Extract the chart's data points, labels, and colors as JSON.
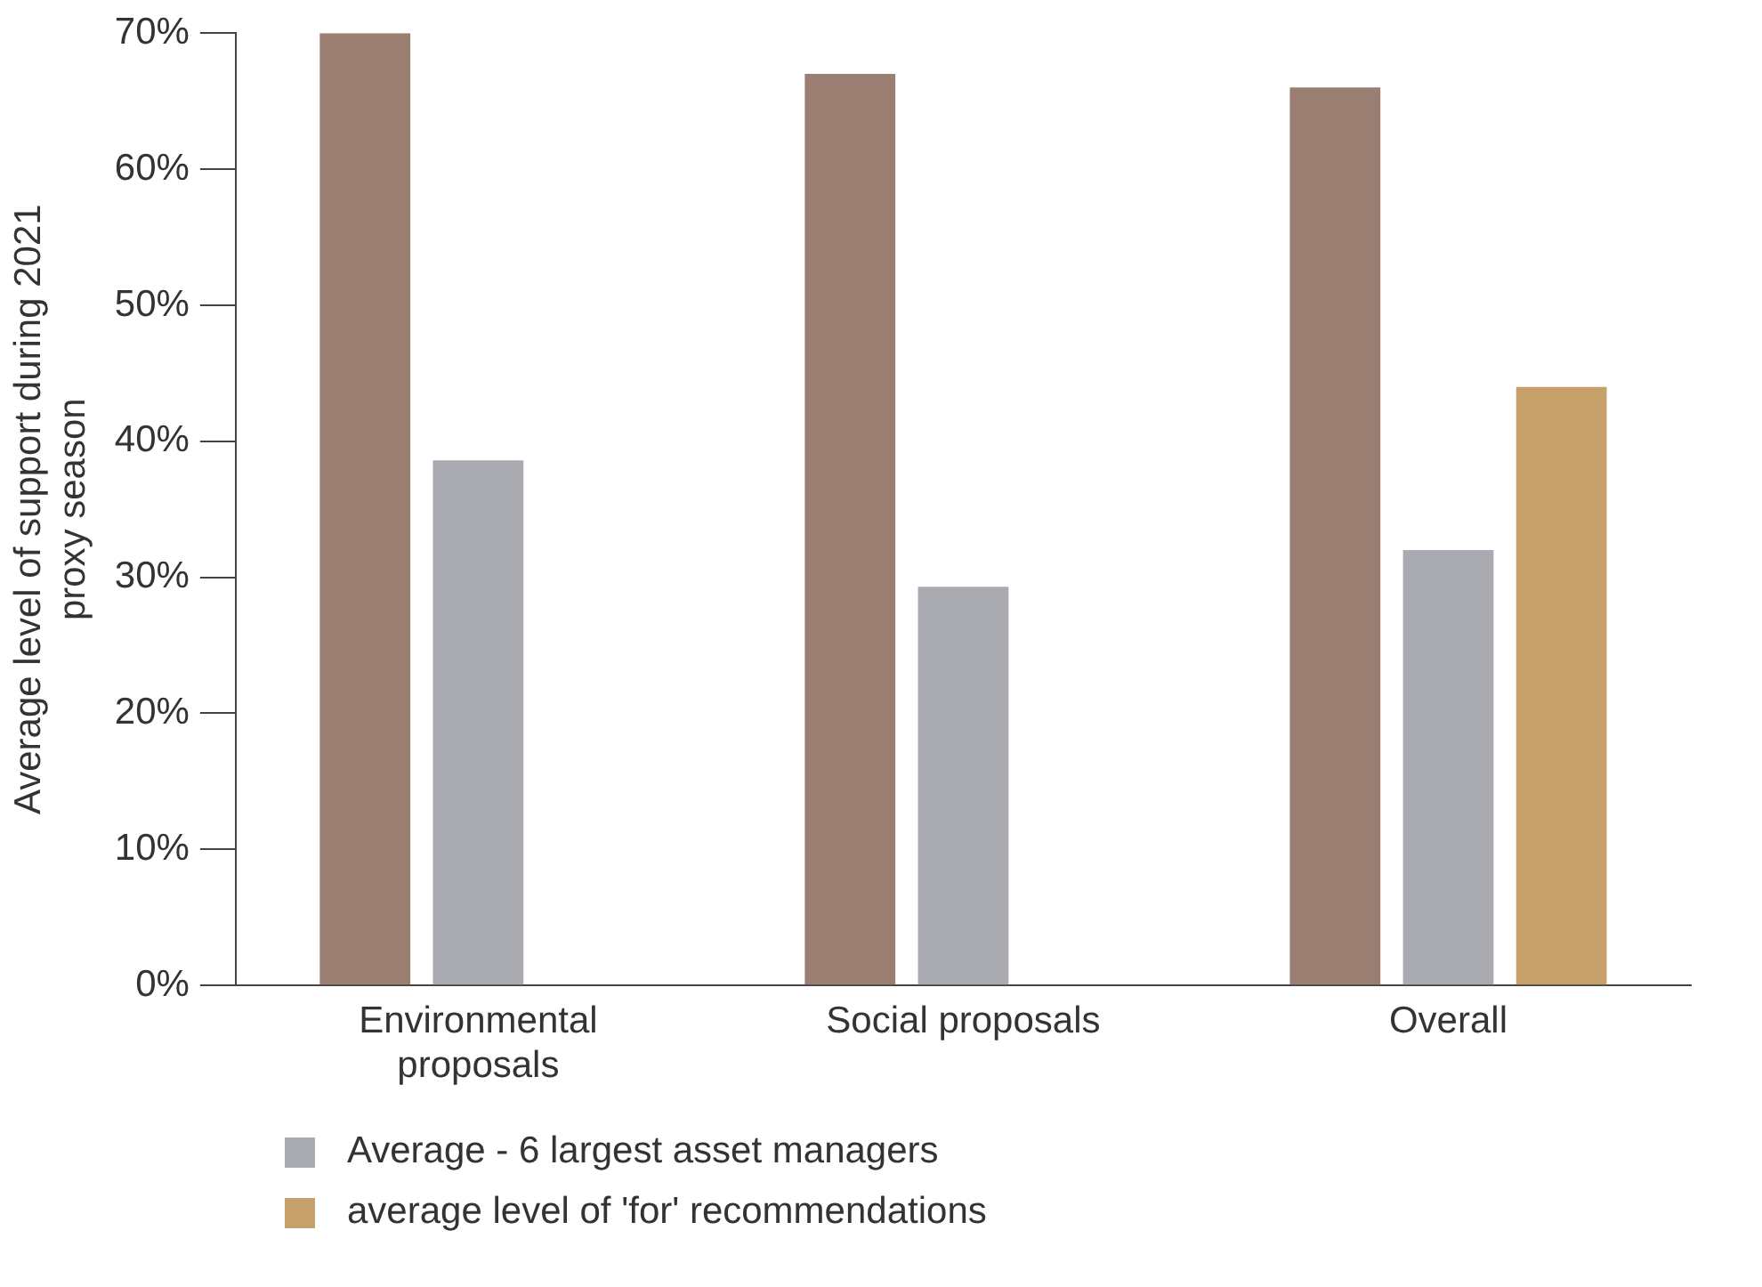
{
  "chart_data": {
    "type": "bar",
    "ylabel": "Average level of support during 2021 proxy season",
    "categories": [
      "Environmental proposals",
      "Social proposals",
      "Overall"
    ],
    "series": [
      {
        "color": "#9a7e72",
        "values": [
          70,
          67,
          66
        ]
      },
      {
        "name": "Average - 6 largest asset managers",
        "color": "#aaaab1",
        "values": [
          38.6,
          29.3,
          32
        ]
      },
      {
        "name": "average level of 'for' recommendations",
        "color": "#c6a06b",
        "values": [
          null,
          null,
          44
        ]
      }
    ],
    "ylim": [
      0,
      70
    ],
    "yticks": [
      {
        "value": 0,
        "label": "0%"
      },
      {
        "value": 10,
        "label": "10%"
      },
      {
        "value": 20,
        "label": "20%"
      },
      {
        "value": 30,
        "label": "30%"
      },
      {
        "value": 40,
        "label": "40%"
      },
      {
        "value": 50,
        "label": "50%"
      },
      {
        "value": 60,
        "label": "60%"
      },
      {
        "value": 70,
        "label": "70%"
      }
    ],
    "grid": false,
    "legend": "bottom left"
  }
}
